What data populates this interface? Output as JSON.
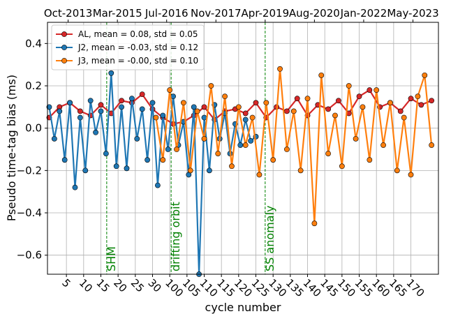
{
  "chart_data": {
    "type": "line",
    "xlabel": "cycle number",
    "ylabel": "Pseudo time-tag bias (ms)",
    "xlim": [
      -0.5,
      113
    ],
    "ylim": [
      -0.69,
      0.5
    ],
    "grid": true,
    "legend": "upper left",
    "xticks": [
      {
        "value": 5,
        "label": "5"
      },
      {
        "value": 10,
        "label": "10"
      },
      {
        "value": 15,
        "label": "15"
      },
      {
        "value": 20,
        "label": "20"
      },
      {
        "value": 25,
        "label": "25"
      },
      {
        "value": 30,
        "label": "30"
      },
      {
        "value": 35,
        "label": "100"
      },
      {
        "value": 40,
        "label": "105"
      },
      {
        "value": 45,
        "label": "110"
      },
      {
        "value": 50,
        "label": "115"
      },
      {
        "value": 55,
        "label": "120"
      },
      {
        "value": 60,
        "label": "125"
      },
      {
        "value": 65,
        "label": "130"
      },
      {
        "value": 70,
        "label": "135"
      },
      {
        "value": 75,
        "label": "140"
      },
      {
        "value": 80,
        "label": "145"
      },
      {
        "value": 85,
        "label": "150"
      },
      {
        "value": 90,
        "label": "155"
      },
      {
        "value": 95,
        "label": "160"
      },
      {
        "value": 100,
        "label": "165"
      },
      {
        "value": 105,
        "label": "170"
      }
    ],
    "x2ticks": [
      {
        "value": 5.5,
        "label": "Oct-2013"
      },
      {
        "value": 19.8,
        "label": "Mar-2015"
      },
      {
        "value": 34.1,
        "label": "Jul-2016"
      },
      {
        "value": 48.4,
        "label": "Nov-2017"
      },
      {
        "value": 62.7,
        "label": "Apr-2019"
      },
      {
        "value": 77,
        "label": "Aug-2020"
      },
      {
        "value": 91.3,
        "label": "Jan-2022"
      },
      {
        "value": 105.6,
        "label": "May-2023"
      }
    ],
    "yticks": [
      {
        "value": -0.6,
        "label": "−0.6"
      },
      {
        "value": -0.4,
        "label": "−0.4"
      },
      {
        "value": -0.2,
        "label": "−0.2"
      },
      {
        "value": 0,
        "label": "0.0"
      },
      0.2,
      0.4
    ],
    "vlines": [
      {
        "x": 16.7,
        "label": "SHM"
      },
      {
        "x": 35.4,
        "label": "drifting orbit"
      },
      {
        "x": 62.7,
        "label": "SS anomaly"
      }
    ],
    "vline_color": "#008000",
    "series": [
      {
        "name": "AL, mean = 0.08, std = 0.05",
        "color": "#d62728",
        "x": [
          0,
          3,
          6,
          9,
          12,
          15,
          18,
          21,
          24,
          27,
          30,
          33,
          36,
          39,
          42,
          45,
          48,
          51,
          54,
          57,
          60,
          63,
          66,
          69,
          72,
          75,
          78,
          81,
          84,
          87,
          90,
          93,
          96,
          99,
          102,
          105,
          108,
          111
        ],
        "values": [
          0.05,
          0.1,
          0.12,
          0.08,
          0.06,
          0.11,
          0.07,
          0.13,
          0.12,
          0.16,
          0.09,
          0.05,
          0.02,
          0.03,
          0.06,
          0.1,
          0.04,
          0.08,
          0.09,
          0.07,
          0.12,
          0.05,
          0.1,
          0.08,
          0.14,
          0.06,
          0.11,
          0.09,
          0.13,
          0.07,
          0.15,
          0.18,
          0.1,
          0.12,
          0.08,
          0.14,
          0.11,
          0.13
        ]
      },
      {
        "name": "J2, mean = -0.03, std = 0.12",
        "color": "#1f77b4",
        "x": [
          0,
          1.5,
          3,
          4.5,
          6,
          7.5,
          9,
          10.5,
          12,
          13.5,
          15,
          16.5,
          18,
          19.5,
          21,
          22.5,
          24,
          25.5,
          27,
          28.5,
          30,
          31.5,
          33,
          34.5,
          36,
          37.5,
          39,
          40.5,
          42,
          43.5,
          45,
          46.5,
          48,
          49.5,
          51,
          52.5,
          54,
          55.5,
          57,
          58.5,
          60
        ],
        "values": [
          0.1,
          -0.05,
          0.08,
          -0.15,
          0.12,
          -0.28,
          0.05,
          -0.2,
          0.13,
          -0.02,
          0.08,
          -0.12,
          0.26,
          -0.18,
          0.1,
          -0.19,
          0.14,
          -0.05,
          0.09,
          -0.15,
          0.12,
          -0.27,
          0.06,
          -0.1,
          0.15,
          -0.08,
          0.03,
          -0.22,
          0.1,
          -0.69,
          0.05,
          -0.2,
          0.11,
          -0.05,
          0.07,
          -0.12,
          0.02,
          -0.08,
          0.04,
          -0.06,
          -0.04
        ]
      },
      {
        "name": "J3, mean = -0.00, std = 0.10",
        "color": "#ff7f0e",
        "x": [
          31,
          33,
          35,
          37,
          39,
          41,
          43,
          45,
          47,
          49,
          51,
          53,
          55,
          57,
          59,
          61,
          63,
          65,
          67,
          69,
          71,
          73,
          75,
          77,
          79,
          81,
          83,
          85,
          87,
          89,
          91,
          93,
          95,
          97,
          99,
          101,
          103,
          105,
          107,
          109,
          111
        ],
        "values": [
          0.05,
          -0.15,
          0.18,
          -0.1,
          0.12,
          -0.2,
          0.08,
          -0.05,
          0.2,
          -0.12,
          0.15,
          -0.18,
          0.1,
          -0.08,
          0.05,
          -0.22,
          0.12,
          -0.15,
          0.28,
          -0.1,
          0.08,
          -0.2,
          0.14,
          -0.45,
          0.25,
          -0.12,
          0.06,
          -0.18,
          0.2,
          -0.05,
          0.1,
          -0.15,
          0.18,
          -0.08,
          0.12,
          -0.2,
          0.05,
          -0.22,
          0.15,
          0.25,
          -0.08
        ]
      }
    ]
  }
}
